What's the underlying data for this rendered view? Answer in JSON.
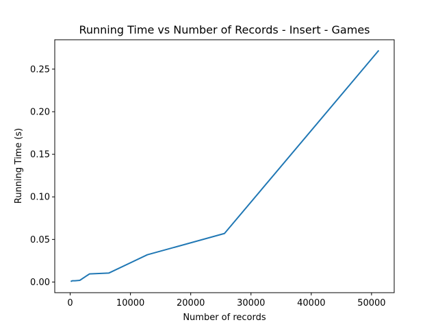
{
  "chart_data": {
    "type": "line",
    "title": "Running Time vs Number of Records - Insert - Games",
    "xlabel": "Number of records",
    "ylabel": "Running Time (s)",
    "xlim": [
      -2560,
      53760
    ],
    "ylim": [
      -0.0125,
      0.2845
    ],
    "xticks": [
      0,
      10000,
      20000,
      30000,
      40000,
      50000
    ],
    "yticks": [
      0.0,
      0.05,
      0.1,
      0.15,
      0.2,
      0.25
    ],
    "xtick_labels": [
      "0",
      "10000",
      "20000",
      "30000",
      "40000",
      "50000"
    ],
    "ytick_labels": [
      "0.00",
      "0.05",
      "0.10",
      "0.15",
      "0.20",
      "0.25"
    ],
    "grid": false,
    "series": [
      {
        "color": "#1f77b4",
        "x": [
          100,
          200,
          400,
          800,
          1600,
          3200,
          6400,
          12800,
          25600,
          51200
        ],
        "y": [
          0.0005,
          0.001,
          0.0015,
          0.0015,
          0.002,
          0.0095,
          0.0105,
          0.032,
          0.057,
          0.272
        ]
      }
    ]
  }
}
